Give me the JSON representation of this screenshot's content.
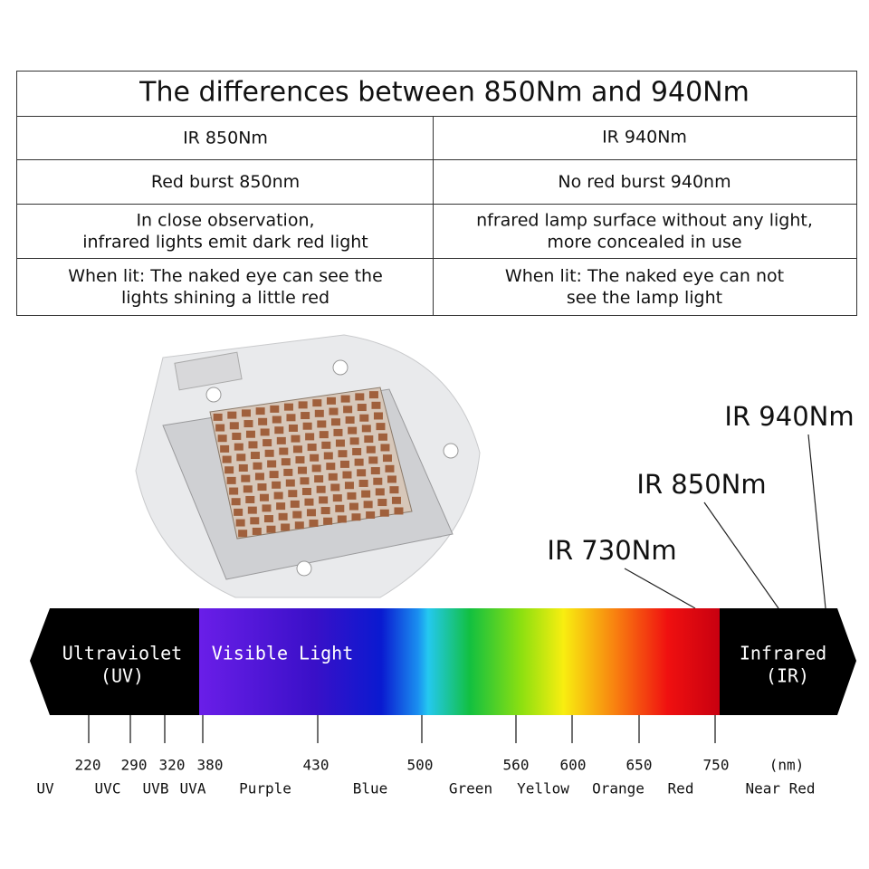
{
  "table": {
    "title": "The differences between 850Nm and 940Nm",
    "header": [
      "IR 850Nm",
      "IR 940Nm"
    ],
    "rows": [
      [
        [
          "Red burst 850nm"
        ],
        [
          "No red burst 940nm"
        ]
      ],
      [
        [
          "In close observation,",
          "infrared lights emit dark red light"
        ],
        [
          "nfrared lamp surface without any light,",
          "more concealed in use"
        ]
      ],
      [
        [
          "When lit: The naked eye can see the",
          "lights shining a little red"
        ],
        [
          "When lit: The naked eye can not",
          "see the lamp light"
        ]
      ]
    ]
  },
  "callouts": [
    "IR 940Nm",
    "IR 850Nm",
    "IR 730Nm"
  ],
  "spectrum": {
    "regions": [
      [
        "Ultraviolet",
        "(UV)"
      ],
      [
        "Visible Light"
      ],
      [
        "Infrared",
        "(IR)"
      ]
    ],
    "wavelengths": [
      "220",
      "290",
      "320",
      "380",
      "430",
      "500",
      "560",
      "600",
      "650",
      "750",
      "(nm)"
    ],
    "bands": [
      "UV",
      "UVC",
      "UVB",
      "UVA",
      "Purple",
      "Blue",
      "Green",
      "Yellow",
      "Orange",
      "Red",
      "Near Red"
    ]
  }
}
